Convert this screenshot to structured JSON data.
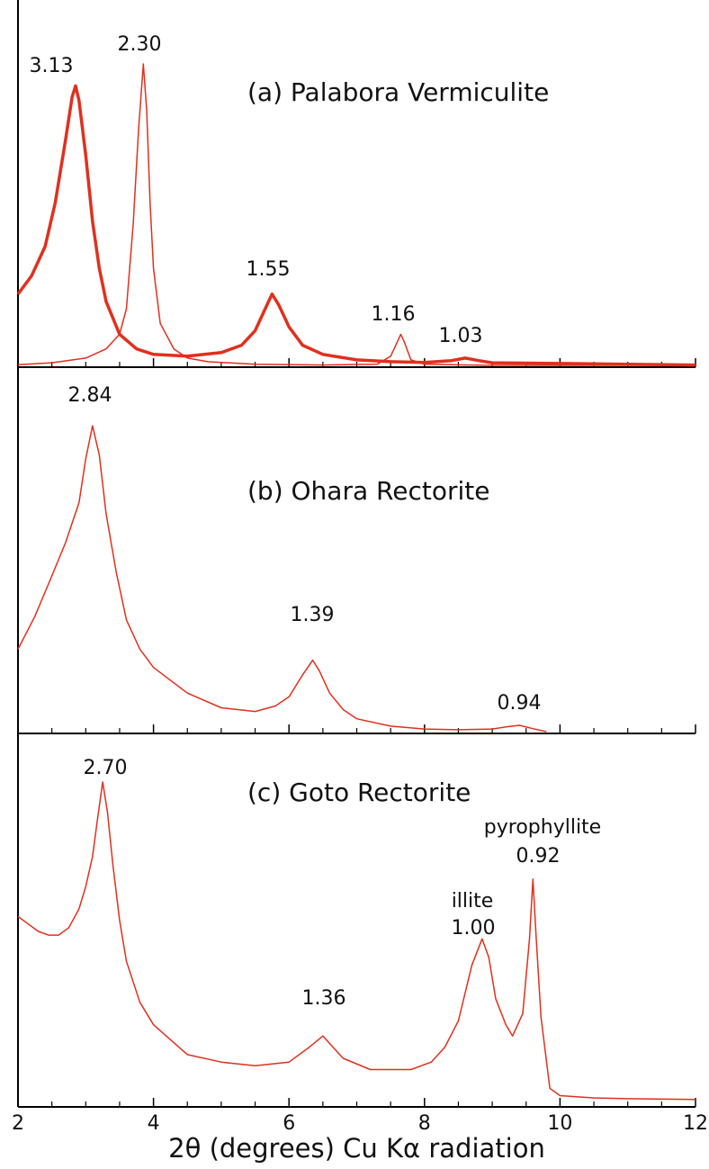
{
  "chart_data": [
    {
      "type": "line",
      "title": "(a) Palabora Vermiculite",
      "xlim": [
        2,
        12
      ],
      "ylim": [
        0,
        100
      ],
      "xticks": [
        2,
        4,
        6,
        8,
        10,
        12
      ],
      "xminor": [
        2.5,
        3,
        3.5,
        4.5,
        5,
        5.5,
        6.5,
        7,
        7.5,
        8.5,
        9,
        9.5,
        10.5,
        11,
        11.5
      ],
      "series": [
        {
          "color": "#e0301e",
          "width": 3.5,
          "x": [
            2,
            2.2,
            2.4,
            2.55,
            2.7,
            2.8,
            2.85,
            2.9,
            3.0,
            3.1,
            3.2,
            3.3,
            3.5,
            3.75,
            4,
            4.5,
            5,
            5.3,
            5.5,
            5.65,
            5.75,
            5.85,
            6.0,
            6.2,
            6.5,
            7,
            7.5,
            8,
            8.4,
            8.6,
            8.8,
            9,
            10,
            11,
            12
          ],
          "values": [
            20,
            25,
            33,
            45,
            62,
            74,
            77,
            73,
            58,
            40,
            27,
            18,
            9,
            5,
            3.5,
            3,
            4,
            6,
            10,
            16,
            20,
            17,
            11,
            6,
            3.5,
            2,
            1.5,
            1.3,
            1.8,
            2.5,
            1.8,
            1.2,
            1,
            0.8,
            0.6
          ]
        },
        {
          "color": "#e0301e",
          "width": 1.5,
          "x": [
            2,
            2.5,
            3,
            3.3,
            3.5,
            3.6,
            3.7,
            3.78,
            3.85,
            3.9,
            3.95,
            4.0,
            4.1,
            4.3,
            4.5,
            4.8,
            5.5,
            6.5,
            7.3,
            7.5,
            7.6,
            7.65,
            7.7,
            7.8,
            8.0,
            9,
            10,
            11,
            12
          ],
          "values": [
            0.7,
            1.2,
            2.5,
            5,
            9,
            16,
            39,
            65,
            83,
            70,
            45,
            27,
            12,
            5,
            2.5,
            1.5,
            0.8,
            0.6,
            0.8,
            3,
            7,
            9,
            7,
            2,
            0.8,
            0.5,
            0.5,
            0.5,
            0.5
          ]
        }
      ],
      "annotations": [
        {
          "text": "3.13"
        },
        {
          "text": "2.30"
        },
        {
          "text": "1.55"
        },
        {
          "text": "1.16"
        },
        {
          "text": "1.03"
        }
      ]
    },
    {
      "type": "line",
      "title": "(b) Ohara Rectorite",
      "xlim": [
        2,
        12
      ],
      "ylim": [
        0,
        100
      ],
      "xticks": [
        2,
        4,
        6,
        8,
        10,
        12
      ],
      "xminor": [
        2.5,
        3,
        3.5,
        4.5,
        5,
        5.5,
        6.5,
        7,
        7.5,
        8.5,
        9,
        9.5,
        10.5,
        11,
        11.5
      ],
      "series": [
        {
          "color": "#e0301e",
          "width": 1.5,
          "x": [
            2,
            2.25,
            2.5,
            2.7,
            2.9,
            3.0,
            3.1,
            3.2,
            3.3,
            3.45,
            3.6,
            3.8,
            4,
            4.5,
            5,
            5.5,
            5.8,
            6,
            6.2,
            6.35,
            6.45,
            6.6,
            6.8,
            7,
            7.5,
            8,
            8.5,
            9,
            9.2,
            9.4,
            9.6,
            9.8
          ],
          "values": [
            23,
            32,
            43,
            52,
            63,
            75,
            84,
            76,
            60,
            44,
            31,
            23,
            18,
            11,
            7,
            6,
            7.5,
            10,
            16,
            20,
            17,
            11,
            6.5,
            4,
            2,
            1.2,
            1,
            1.2,
            1.8,
            2.2,
            1.3,
            0.5
          ]
        }
      ],
      "annotations": [
        {
          "text": "2.84"
        },
        {
          "text": "1.39"
        },
        {
          "text": "0.94"
        }
      ]
    },
    {
      "type": "line",
      "title": "(c) Goto Rectorite",
      "xlabel": "2θ (degrees) Cu Kα radiation",
      "xlim": [
        2,
        12
      ],
      "ylim": [
        0,
        100
      ],
      "xticks": [
        2,
        4,
        6,
        8,
        10,
        12
      ],
      "xminor": [
        2.5,
        3,
        3.5,
        4.5,
        5,
        5.5,
        6.5,
        7,
        7.5,
        8.5,
        9,
        9.5,
        10.5,
        11,
        11.5
      ],
      "series": [
        {
          "color": "#e0301e",
          "width": 1.5,
          "x": [
            2,
            2.15,
            2.3,
            2.45,
            2.6,
            2.75,
            2.9,
            3.0,
            3.1,
            3.18,
            3.25,
            3.32,
            3.4,
            3.5,
            3.6,
            3.8,
            4,
            4.5,
            5,
            5.5,
            6,
            6.3,
            6.5,
            6.65,
            6.8,
            7.2,
            7.8,
            8.1,
            8.3,
            8.5,
            8.7,
            8.85,
            8.95,
            9.05,
            9.2,
            9.3,
            9.45,
            9.55,
            9.6,
            9.65,
            9.72,
            9.85,
            10,
            10.5,
            11,
            12
          ],
          "values": [
            51,
            49,
            47,
            46,
            46,
            48,
            53,
            59,
            67,
            78,
            87,
            79,
            65,
            50,
            39,
            28,
            22,
            14,
            12,
            11,
            12,
            16,
            19,
            16,
            13,
            10,
            10,
            12,
            16,
            23,
            38,
            45,
            40,
            29,
            22,
            19,
            25,
            45,
            61,
            45,
            24,
            5,
            3,
            2.4,
            2.2,
            2
          ]
        }
      ],
      "annotations": [
        {
          "text": "2.70"
        },
        {
          "text": "pyrophyllite"
        },
        {
          "text": "0.92"
        },
        {
          "text": "illite"
        },
        {
          "text": "1.00"
        },
        {
          "text": "1.36"
        }
      ]
    }
  ]
}
